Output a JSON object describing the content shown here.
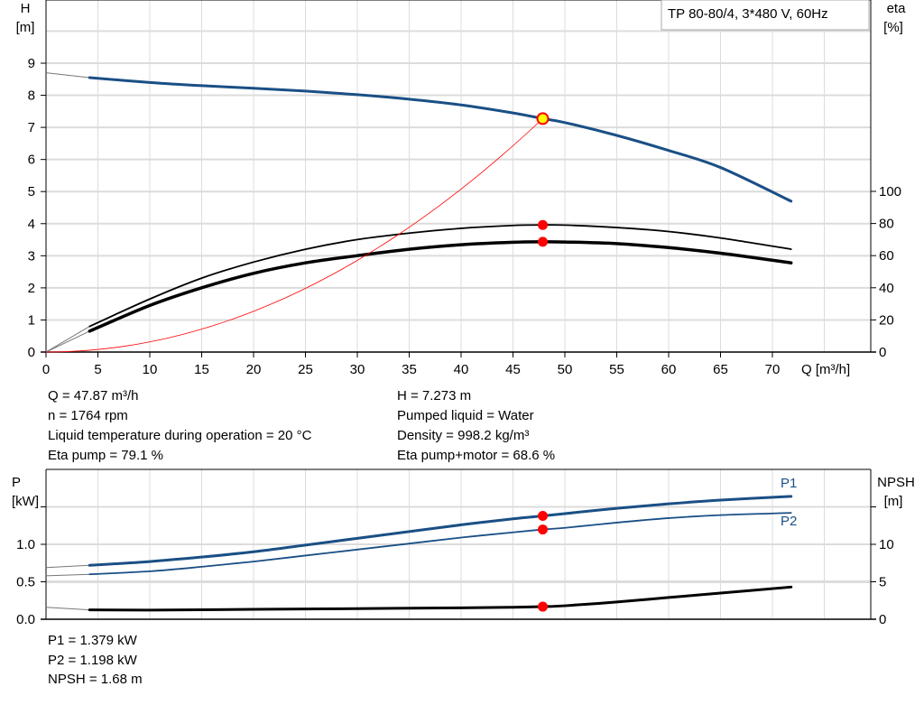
{
  "title_box": "TP 80-80/4, 3*480 V, 60Hz",
  "colors": {
    "head": "#1a4f85",
    "power": "#1a4f85",
    "eta": "#000000",
    "npsh": "#000000",
    "system": "#ff0000",
    "marker": "#ff0000",
    "duty_marker": "#ffff00",
    "grid": "#dddddd"
  },
  "chart_data": [
    {
      "type": "line",
      "xlabel": "Q [m³/h]",
      "ylabel": "H\n[m]",
      "ylabel_parts": [
        "H",
        "[m]"
      ],
      "y2label_parts": [
        "eta",
        "[%]"
      ],
      "xlim": [
        0,
        79
      ],
      "ylim": [
        0,
        11
      ],
      "y2lim": [
        0,
        220
      ],
      "xticks": [
        0,
        5,
        10,
        15,
        20,
        25,
        30,
        35,
        40,
        45,
        50,
        55,
        60,
        65,
        70
      ],
      "yticks": [
        0,
        1,
        2,
        3,
        4,
        5,
        6,
        7,
        8,
        9
      ],
      "y2ticks": [
        0,
        20,
        40,
        60,
        80,
        100
      ],
      "grid": true,
      "series": [
        {
          "key": "H",
          "axis": "left",
          "width": 3,
          "color": "#1a4f85",
          "x": [
            4.2,
            10,
            15,
            20,
            25,
            30,
            35,
            40,
            45,
            47.87,
            50,
            55,
            60,
            65,
            71.8
          ],
          "y": [
            8.55,
            8.4,
            8.3,
            8.22,
            8.13,
            8.02,
            7.88,
            7.7,
            7.45,
            7.273,
            7.15,
            6.75,
            6.28,
            5.75,
            4.7
          ],
          "extension": {
            "x": [
              0,
              4.2
            ],
            "y": [
              8.7,
              8.55
            ]
          }
        },
        {
          "key": "eta_pump",
          "axis": "right",
          "width": 1.8,
          "color": "#000000",
          "x": [
            4.2,
            10,
            15,
            20,
            25,
            30,
            35,
            40,
            45,
            47.87,
            50,
            55,
            60,
            65,
            71.8
          ],
          "y": [
            16,
            33,
            46,
            56,
            64,
            70,
            74,
            77,
            78.8,
            79.1,
            79,
            77.5,
            75,
            71,
            64
          ],
          "extension": {
            "x": [
              0,
              4.2
            ],
            "y": [
              0,
              16
            ]
          }
        },
        {
          "key": "eta_pump_motor",
          "axis": "right",
          "width": 3.5,
          "color": "#000000",
          "x": [
            4.2,
            10,
            15,
            20,
            25,
            30,
            35,
            40,
            45,
            47.87,
            50,
            55,
            60,
            65,
            71.8
          ],
          "y": [
            13,
            29,
            40,
            49,
            55.5,
            60,
            64,
            66.8,
            68.3,
            68.6,
            68.5,
            67.5,
            65,
            61.5,
            55.5
          ],
          "extension": {
            "x": [
              0,
              4.2
            ],
            "y": [
              0,
              13
            ]
          }
        },
        {
          "key": "system_curve",
          "axis": "left",
          "width": 0.8,
          "color": "#ff0000",
          "parabola_through": [
            47.87,
            7.273
          ]
        }
      ],
      "markers": [
        {
          "x": 47.87,
          "y": 7.273,
          "axis": "left",
          "fill": "#ffff00"
        },
        {
          "x": 47.87,
          "y": 79.1,
          "axis": "right",
          "fill": "#ff0000"
        },
        {
          "x": 47.87,
          "y": 68.6,
          "axis": "right",
          "fill": "#ff0000"
        }
      ]
    },
    {
      "type": "line",
      "ylabel_parts": [
        "P",
        "[kW]"
      ],
      "y2label_parts": [
        "NPSH",
        "[m]"
      ],
      "xlim": [
        0,
        79
      ],
      "ylim": [
        0,
        2
      ],
      "y2lim": [
        0,
        20
      ],
      "yticks": [
        0,
        0.5,
        1.0,
        1.5
      ],
      "ytick_labels": [
        "0.0",
        "0.5",
        "1.0",
        ""
      ],
      "y2ticks": [
        0,
        5,
        10,
        15
      ],
      "y2tick_labels": [
        "0",
        "5",
        "10",
        ""
      ],
      "grid": true,
      "series": [
        {
          "key": "P1",
          "name": "P1",
          "axis": "left",
          "width": 3,
          "color": "#1a4f85",
          "x": [
            4.2,
            10,
            15,
            20,
            25,
            30,
            35,
            40,
            45,
            47.87,
            50,
            55,
            60,
            65,
            71.8
          ],
          "y": [
            0.72,
            0.77,
            0.83,
            0.9,
            0.99,
            1.08,
            1.17,
            1.26,
            1.34,
            1.379,
            1.41,
            1.48,
            1.54,
            1.59,
            1.64
          ],
          "extension": {
            "x": [
              0,
              4.2
            ],
            "y": [
              0.69,
              0.72
            ]
          }
        },
        {
          "key": "P2",
          "name": "P2",
          "axis": "left",
          "width": 1.8,
          "color": "#1a4f85",
          "x": [
            4.2,
            10,
            15,
            20,
            25,
            30,
            35,
            40,
            45,
            47.87,
            50,
            55,
            60,
            65,
            71.8
          ],
          "y": [
            0.6,
            0.64,
            0.7,
            0.77,
            0.85,
            0.93,
            1.01,
            1.09,
            1.16,
            1.198,
            1.22,
            1.29,
            1.35,
            1.39,
            1.42
          ],
          "extension": {
            "x": [
              0,
              4.2
            ],
            "y": [
              0.58,
              0.6
            ]
          }
        },
        {
          "key": "NPSH",
          "axis": "right",
          "width": 3,
          "color": "#000000",
          "x": [
            4.2,
            10,
            20,
            30,
            40,
            45,
            47.87,
            50,
            55,
            60,
            65,
            71.8
          ],
          "y": [
            1.25,
            1.22,
            1.32,
            1.42,
            1.52,
            1.6,
            1.68,
            1.8,
            2.3,
            2.9,
            3.5,
            4.3
          ],
          "extension": {
            "x": [
              0,
              4.2
            ],
            "y": [
              1.6,
              1.25
            ]
          }
        }
      ],
      "markers": [
        {
          "x": 47.87,
          "y": 1.379,
          "axis": "left",
          "fill": "#ff0000"
        },
        {
          "x": 47.87,
          "y": 1.198,
          "axis": "left",
          "fill": "#ff0000"
        },
        {
          "x": 47.87,
          "y": 1.68,
          "axis": "right",
          "fill": "#ff0000"
        }
      ]
    }
  ],
  "info": {
    "q": "Q = 47.87 m³/h",
    "n": "n = 1764 rpm",
    "temp": "Liquid temperature during operation = 20 °C",
    "eta_pump": "Eta pump = 79.1 %",
    "h": "H = 7.273 m",
    "liquid": "Pumped liquid = Water",
    "density": "Density = 998.2 kg/m³",
    "eta_total": "Eta pump+motor = 68.6 %",
    "p1": "P1 = 1.379 kW",
    "p2": "P2 = 1.198 kW",
    "npsh": "NPSH = 1.68 m"
  }
}
